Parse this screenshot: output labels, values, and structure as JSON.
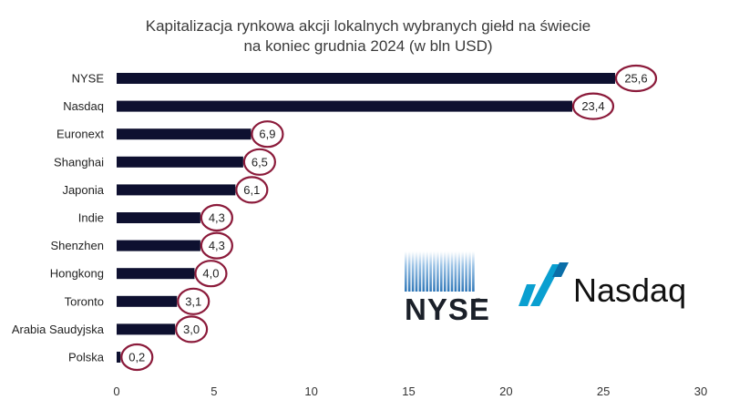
{
  "chart_data": {
    "type": "bar",
    "orientation": "horizontal",
    "title_lines": [
      "Kapitalizacja rynkowa akcji lokalnych wybranych giełd na świecie",
      "na koniec grudnia 2024 (w bln USD)"
    ],
    "categories": [
      "NYSE",
      "Nasdaq",
      "Euronext",
      "Shanghai",
      "Japonia",
      "Indie",
      "Shenzhen",
      "Hongkong",
      "Toronto",
      "Arabia Saudyjska",
      "Polska"
    ],
    "values": [
      25.6,
      23.4,
      6.9,
      6.5,
      6.1,
      4.3,
      4.3,
      4.0,
      3.1,
      3.0,
      0.2
    ],
    "value_labels": [
      "25,6",
      "23,4",
      "6,9",
      "6,5",
      "6,1",
      "4,3",
      "4,3",
      "4,0",
      "3,1",
      "3,0",
      "0,2"
    ],
    "xlim": [
      0,
      30
    ],
    "x_ticks": [
      0,
      5,
      10,
      15,
      20,
      25,
      30
    ],
    "xlabel": "",
    "ylabel": "",
    "grid": false,
    "legend": "none",
    "bar_color": "#0e1030",
    "label_circle_color": "#8b1a3a"
  },
  "logos": {
    "nyse": {
      "text": "NYSE",
      "mark": "™",
      "color": "#1b2029",
      "accent": "#2f77b8"
    },
    "nasdaq": {
      "text": "Nasdaq",
      "color": "#111111",
      "accent": "#0a9fd0"
    }
  }
}
